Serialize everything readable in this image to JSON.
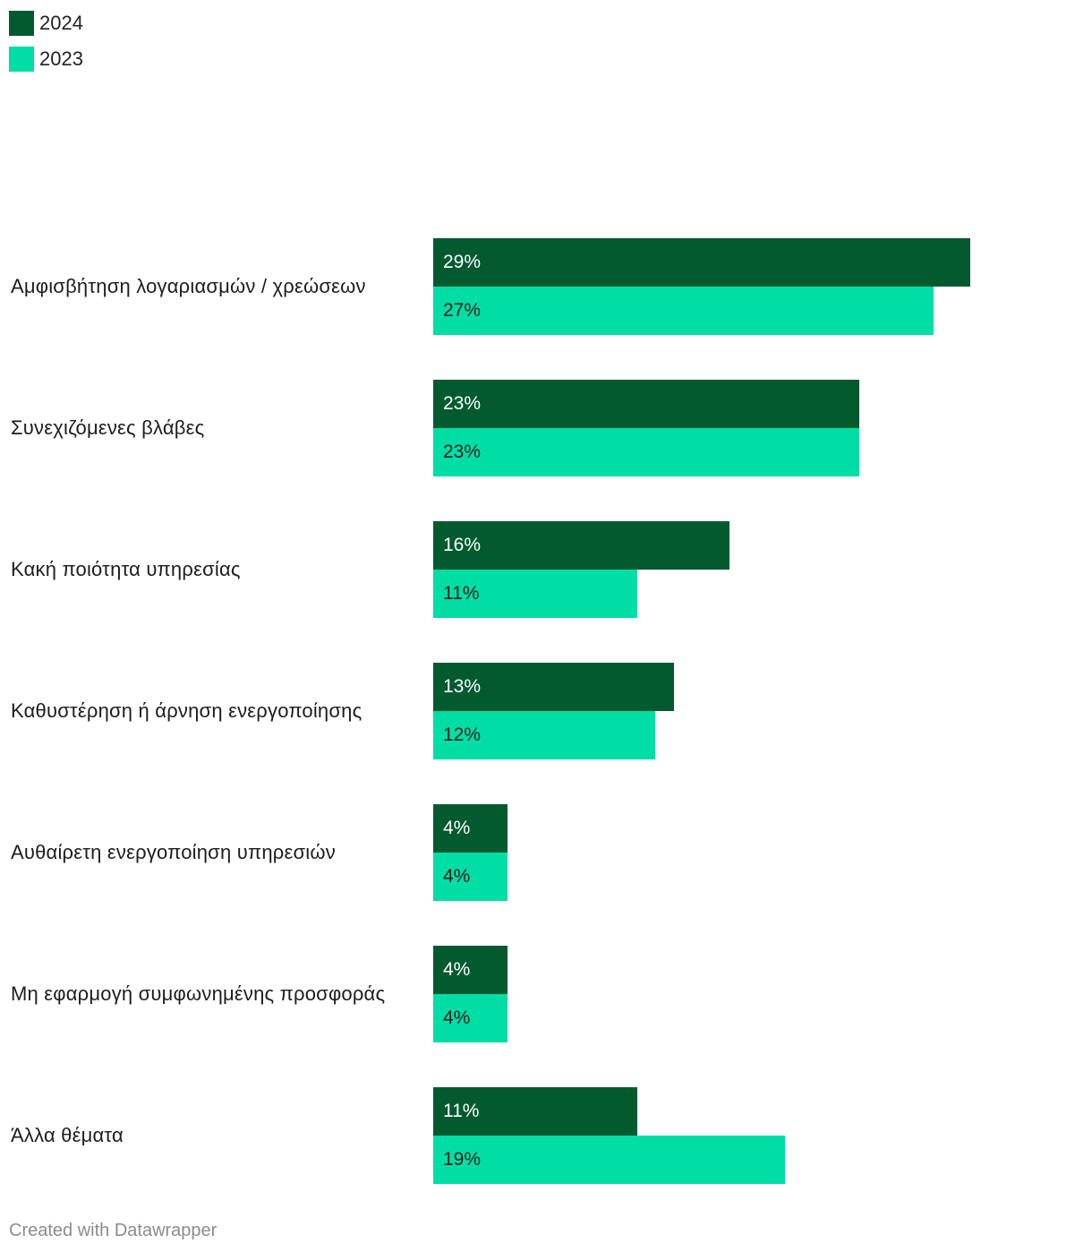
{
  "legend": [
    {
      "label": "2024",
      "color": "#035a2f"
    },
    {
      "label": "2023",
      "color": "#00dea6"
    }
  ],
  "chart_data": {
    "type": "bar",
    "orientation": "horizontal",
    "categories": [
      "Αμφισβήτηση λογαριασμών / χρεώσεων",
      "Συνεχιζόμενες βλάβες",
      "Κακή ποιότητα υπηρεσίας",
      "Καθυστέρηση ή άρνηση ενεργοποίησης",
      "Αυθαίρετη ενεργοποίηση υπηρεσιών",
      "Μη εφαρμογή συμφωνημένης προσφοράς",
      "Άλλα θέματα"
    ],
    "series": [
      {
        "name": "2024",
        "color": "#035a2f",
        "label_color": "#ffffff",
        "values": [
          29,
          23,
          16,
          13,
          4,
          4,
          11
        ]
      },
      {
        "name": "2023",
        "color": "#00dea6",
        "label_color": "#1d1d1d",
        "values": [
          27,
          23,
          11,
          12,
          4,
          4,
          19
        ]
      }
    ],
    "value_suffix": "%",
    "xlim": [
      0,
      29
    ],
    "title": "",
    "xlabel": "",
    "ylabel": "",
    "grid": false,
    "legend": "top-left"
  },
  "footer": {
    "credit": "Created with Datawrapper"
  }
}
